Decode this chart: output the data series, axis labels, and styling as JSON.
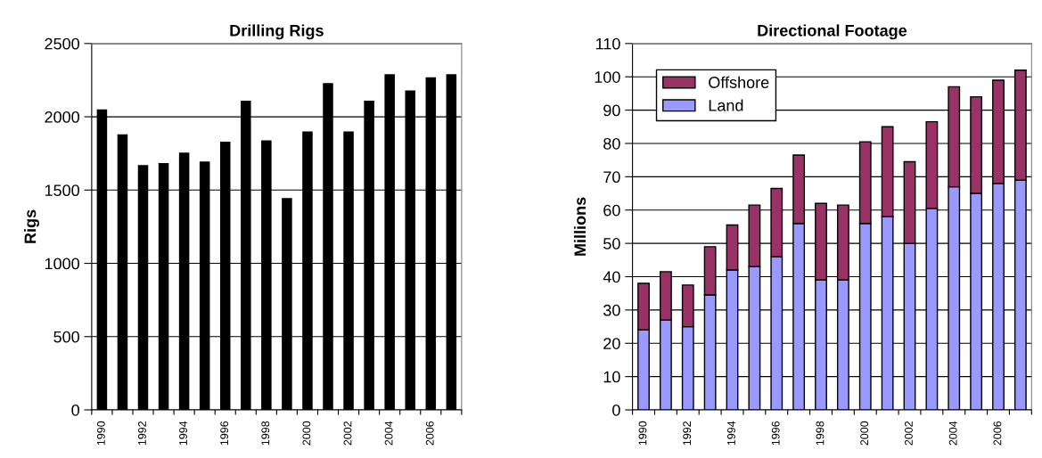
{
  "chart_data": [
    {
      "type": "bar",
      "title": "Drilling Rigs",
      "ylabel": "Rigs",
      "categories": [
        "1990",
        null,
        "1992",
        null,
        "1994",
        null,
        "1996",
        null,
        "1998",
        null,
        "2000",
        null,
        "2002",
        null,
        "2004",
        null,
        "2006",
        null
      ],
      "series": [
        {
          "color": "#000000",
          "values": [
            2050,
            1880,
            1670,
            1685,
            1755,
            1695,
            1830,
            2110,
            1840,
            1445,
            1900,
            2230,
            1900,
            2110,
            2290,
            2180,
            2270,
            2290
          ]
        }
      ],
      "ylim": [
        0,
        2500
      ],
      "yticks": [
        0,
        500,
        1000,
        1500,
        2000,
        2500
      ],
      "grid": "y",
      "legend": false
    },
    {
      "type": "bar",
      "title": "Directional Footage",
      "ylabel": "Millions",
      "stacked": true,
      "categories": [
        "1990",
        null,
        "1992",
        null,
        "1994",
        null,
        "1996",
        null,
        "1998",
        null,
        "2000",
        null,
        "2002",
        null,
        "2004",
        null,
        "2006",
        null
      ],
      "series": [
        {
          "name": "Land",
          "color": "#9999ff",
          "values": [
            24,
            27,
            25,
            34.5,
            42,
            43,
            46,
            56,
            39,
            39,
            56,
            58,
            50,
            60.5,
            67,
            65,
            68,
            69
          ]
        },
        {
          "name": "Offshore",
          "color": "#993366",
          "values": [
            14,
            14.5,
            12.5,
            14.5,
            13.5,
            18.5,
            20.5,
            20.5,
            23,
            22.5,
            24.5,
            27,
            24.5,
            26,
            30,
            29,
            31,
            33
          ]
        }
      ],
      "ylim": [
        0,
        110
      ],
      "yticks": [
        0,
        10,
        20,
        30,
        40,
        50,
        60,
        70,
        80,
        90,
        100,
        110
      ],
      "grid": "y",
      "legend": "top left"
    }
  ]
}
